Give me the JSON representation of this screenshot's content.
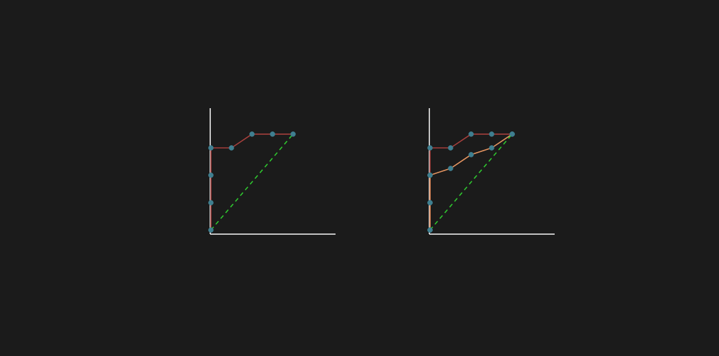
{
  "colors": {
    "background": "#1b1b1b",
    "axis": "#ffffff",
    "curve_red": "#a8403d",
    "curve_orange": "#e69561",
    "diagonal": "#2fc82f",
    "marker": "#3f7f90"
  },
  "chart_data": [
    {
      "type": "line",
      "title": "",
      "xlabel": "",
      "ylabel": "",
      "xlim": [
        0,
        6
      ],
      "ylim": [
        0,
        6
      ],
      "grid": false,
      "series": [
        {
          "color": "#a8403d",
          "style": "solid",
          "x": [
            0,
            0,
            0,
            0,
            1,
            2,
            3,
            4
          ],
          "y": [
            0,
            1.33,
            2.67,
            4,
            4,
            4.67,
            4.67,
            4.67
          ],
          "markers": true
        },
        {
          "color": "#2fc82f",
          "style": "dashed",
          "x": [
            0,
            4
          ],
          "y": [
            0,
            4.67
          ],
          "markers": false
        }
      ]
    },
    {
      "type": "line",
      "title": "",
      "xlabel": "",
      "ylabel": "",
      "xlim": [
        0,
        6
      ],
      "ylim": [
        0,
        6
      ],
      "grid": false,
      "series": [
        {
          "color": "#a8403d",
          "style": "solid",
          "x": [
            0,
            0,
            0,
            0,
            1,
            2,
            3,
            4
          ],
          "y": [
            0,
            1.33,
            2.67,
            4,
            4,
            4.67,
            4.67,
            4.67
          ],
          "markers": true
        },
        {
          "color": "#e69561",
          "style": "solid",
          "x": [
            0,
            0,
            0,
            1,
            2,
            3,
            4
          ],
          "y": [
            0,
            1.33,
            2.67,
            3,
            3.67,
            4,
            4.67
          ],
          "markers": true
        },
        {
          "color": "#2fc82f",
          "style": "dashed",
          "x": [
            0,
            4
          ],
          "y": [
            0,
            4.67
          ],
          "markers": false
        }
      ]
    }
  ]
}
